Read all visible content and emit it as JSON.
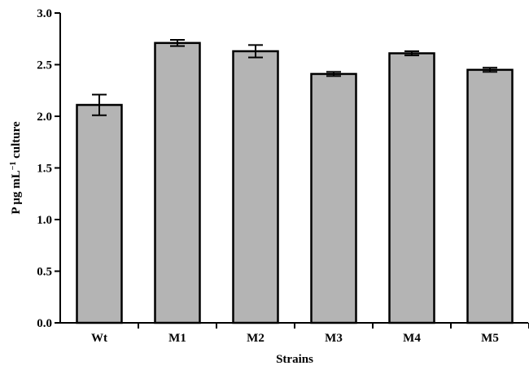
{
  "chart_data": {
    "type": "bar",
    "categories": [
      "Wt",
      "M1",
      "M2",
      "M3",
      "M4",
      "M5"
    ],
    "values": [
      2.11,
      2.71,
      2.63,
      2.41,
      2.61,
      2.45
    ],
    "errors": [
      0.1,
      0.03,
      0.06,
      0.02,
      0.02,
      0.02
    ],
    "xlabel": "Strains",
    "ylabel_main": "P μg mL",
    "ylabel_sup": "−1",
    "ylabel_tail": " culture",
    "ylim": [
      0.0,
      3.0
    ],
    "yticks": [
      "0.0",
      "0.5",
      "1.0",
      "1.5",
      "2.0",
      "2.5",
      "3.0"
    ],
    "bar_color": "#b4b4b4",
    "grid": false
  }
}
